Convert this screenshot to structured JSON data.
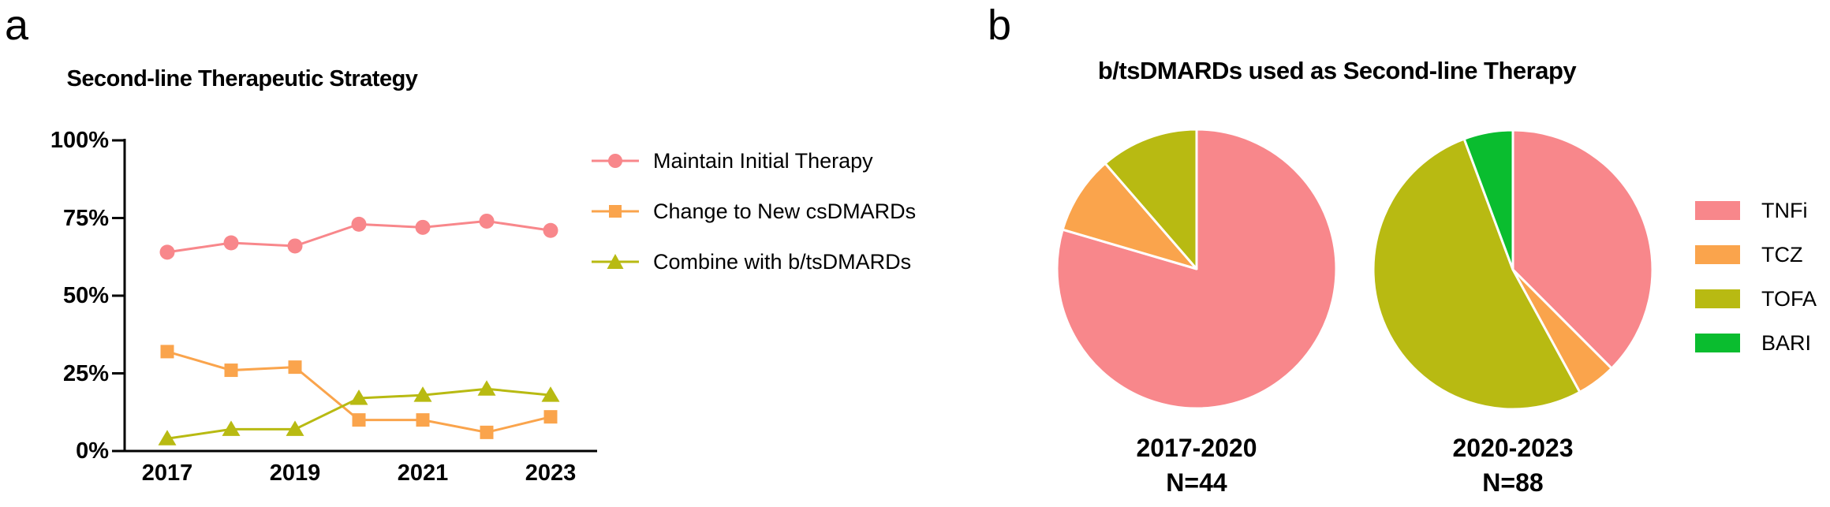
{
  "panel_a": {
    "label": "a"
  },
  "panel_b": {
    "label": "b"
  },
  "colors": {
    "salmon": "#F8878B",
    "orange": "#FAA44C",
    "olive": "#B8BA12",
    "green": "#0ABD2F",
    "axis": "#000000"
  },
  "chart_data": [
    {
      "type": "line",
      "title": "Second-line Therapeutic Strategy",
      "x": [
        2017,
        2018,
        2019,
        2020,
        2021,
        2022,
        2023
      ],
      "x_tick_labels": [
        "2017",
        "2019",
        "2021",
        "2023"
      ],
      "y_tick_labels": [
        "100%",
        "75%",
        "50%",
        "25%",
        "0%"
      ],
      "y_tick_values": [
        100,
        75,
        50,
        25,
        0
      ],
      "ylim": [
        0,
        100
      ],
      "xlabel": "",
      "ylabel": "",
      "grid": false,
      "legend_position": "right",
      "series": [
        {
          "name": "Maintain Initial Therapy",
          "marker": "circle",
          "color": "#F8878B",
          "values": [
            64,
            67,
            66,
            73,
            72,
            74,
            71
          ]
        },
        {
          "name": "Change to New csDMARDs",
          "marker": "square",
          "color": "#FAA44C",
          "values": [
            32,
            26,
            27,
            10,
            10,
            6,
            11
          ]
        },
        {
          "name": "Combine with b/tsDMARDs",
          "marker": "triangle",
          "color": "#B8BA12",
          "values": [
            4,
            7,
            7,
            17,
            18,
            20,
            18
          ]
        }
      ]
    },
    {
      "type": "pie",
      "title": "b/tsDMARDs used as Second-line Therapy",
      "categories": [
        "TNFi",
        "TCZ",
        "TOFA",
        "BARI"
      ],
      "colors": [
        "#F8878B",
        "#FAA44C",
        "#B8BA12",
        "#0ABD2F"
      ],
      "legend_position": "right",
      "pies": [
        {
          "label": "2017-2020",
          "n_label": "N=44",
          "total": 44,
          "values": [
            35,
            4,
            5,
            0
          ],
          "percents": [
            79.5,
            9.1,
            11.4,
            0
          ]
        },
        {
          "label": "2020-2023",
          "n_label": "N=88",
          "total": 88,
          "values": [
            33,
            4,
            46,
            5
          ],
          "percents": [
            37.5,
            4.5,
            52.3,
            5.7
          ]
        }
      ]
    }
  ]
}
